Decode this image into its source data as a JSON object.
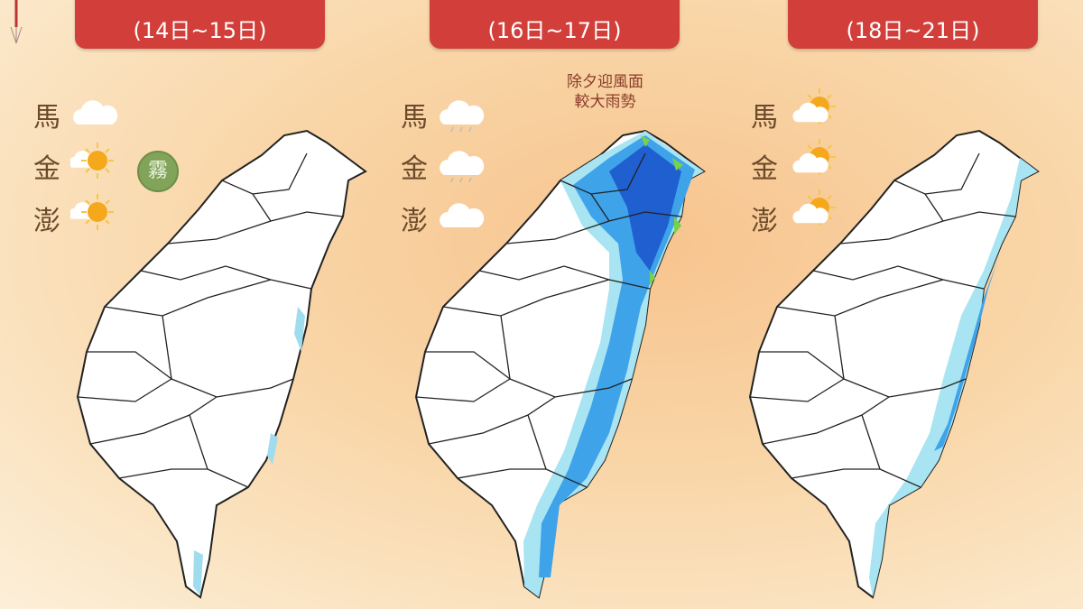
{
  "panels": [
    {
      "date": "(14日~15日)",
      "islands": [
        {
          "name": "馬",
          "icon": "cloud-icon"
        },
        {
          "name": "金",
          "icon": "sun-cloud-icon"
        },
        {
          "name": "澎",
          "icon": "sun-cloud-icon"
        }
      ],
      "badge": "霧"
    },
    {
      "date": "(16日~17日)",
      "islands": [
        {
          "name": "馬",
          "icon": "rain-cloud-icon"
        },
        {
          "name": "金",
          "icon": "rain-cloud-icon"
        },
        {
          "name": "澎",
          "icon": "cloud-icon"
        }
      ],
      "note_line1": "除夕迎風面",
      "note_line2": "較大雨勢"
    },
    {
      "date": "(18日~21日)",
      "islands": [
        {
          "name": "馬",
          "icon": "partly-sunny-icon"
        },
        {
          "name": "金",
          "icon": "partly-sunny-icon"
        },
        {
          "name": "澎",
          "icon": "partly-sunny-icon"
        }
      ]
    }
  ],
  "colors": {
    "header": "#d23f3a",
    "rain_light": "#a9e4f2",
    "rain_mid": "#3fa3ea",
    "rain_heavy": "#1f5fd0",
    "rain_peak": "#7ad04a",
    "fog": "#82a45a"
  }
}
